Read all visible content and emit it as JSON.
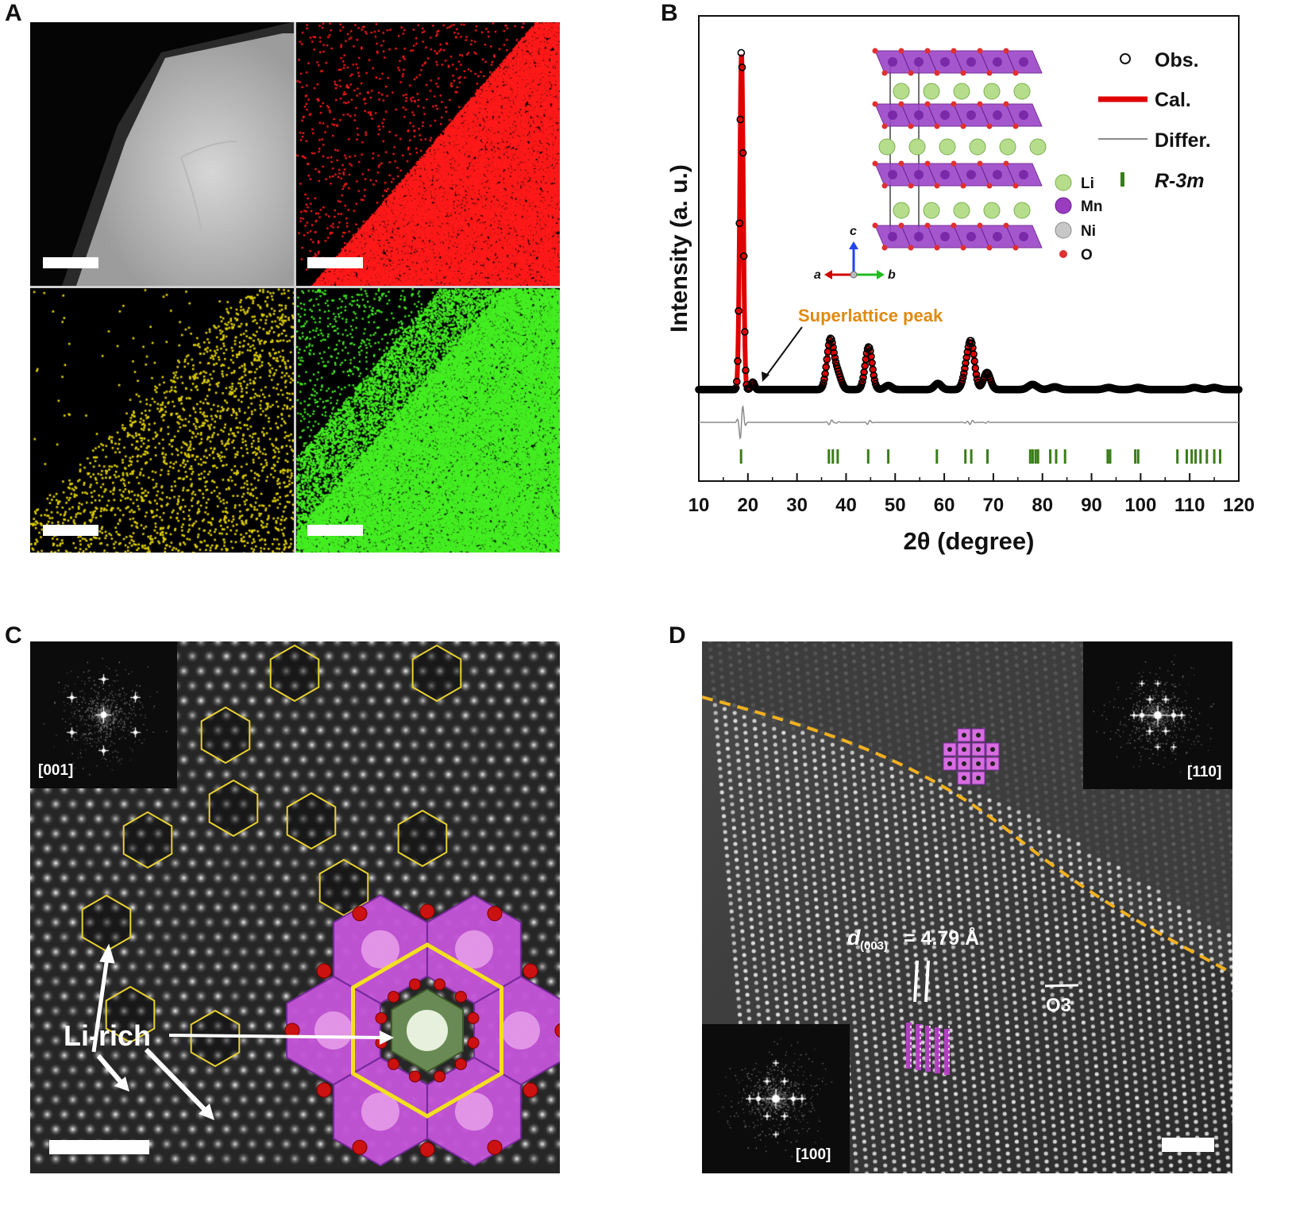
{
  "panel_labels": {
    "a": "A",
    "b": "B",
    "c": "C",
    "d": "D"
  },
  "panel_a": {
    "tiles": [
      {
        "name": "haadf",
        "color": "#d9d9d9"
      },
      {
        "name": "map-1",
        "color": "#ff1a1a"
      },
      {
        "name": "map-2",
        "color": "#e0d000"
      },
      {
        "name": "map-3",
        "color": "#44ee22"
      }
    ]
  },
  "chart_data": {
    "type": "line",
    "title": "",
    "xlabel": "2θ (degree)",
    "ylabel": "Intensity (a. u.)",
    "xlim": [
      10,
      120
    ],
    "xticks": [
      10,
      20,
      30,
      40,
      50,
      60,
      70,
      80,
      90,
      100,
      110,
      120
    ],
    "xtick_labels": [
      "10",
      "20",
      "30",
      "40",
      "50",
      "60",
      "70",
      "80",
      "90",
      "100",
      "110",
      "120"
    ],
    "yticks_shown": false,
    "series": [
      {
        "name": "Obs.",
        "style": "open-circles",
        "color": "#000000",
        "peaks": [
          [
            18.7,
            100
          ],
          [
            21.0,
            2.2
          ],
          [
            36.8,
            14.5
          ],
          [
            38.3,
            4.5
          ],
          [
            44.6,
            12.5
          ],
          [
            48.6,
            1.2
          ],
          [
            58.7,
            1.8
          ],
          [
            64.5,
            4.5
          ],
          [
            65.5,
            12.5
          ],
          [
            68.7,
            5.0
          ],
          [
            78.0,
            1.5
          ],
          [
            82.5,
            0.8
          ],
          [
            93.5,
            0.6
          ],
          [
            99.5,
            0.6
          ],
          [
            111.0,
            0.6
          ],
          [
            115.0,
            0.6
          ]
        ],
        "baseline": 1.5
      },
      {
        "name": "Cal.",
        "style": "line",
        "color": "#e00000"
      },
      {
        "name": "Differ.",
        "style": "line",
        "color": "#8a8a8a"
      }
    ],
    "reflections": {
      "name": "R-3m",
      "color": "#3a7d1a",
      "positions": [
        18.6,
        36.5,
        37.3,
        38.3,
        44.5,
        48.6,
        58.5,
        64.3,
        65.5,
        68.8,
        77.5,
        78.0,
        78.6,
        79.1,
        81.6,
        82.8,
        84.6,
        93.3,
        93.8,
        98.9,
        99.5,
        107.5,
        109.4,
        110.4,
        111.2,
        112.2,
        113.5,
        115.0,
        116.2
      ]
    },
    "legend": [
      "Obs.",
      "Cal.",
      "Differ.",
      "R-3m"
    ],
    "legend_position": "top-right",
    "annotation": {
      "text": "Superlattice peak",
      "x": 21.0,
      "color": "#e08a10"
    },
    "inset_legend": [
      "Li",
      "Mn",
      "Ni",
      "O"
    ],
    "axes_labels": {
      "a": "a",
      "b": "b",
      "c": "c"
    }
  },
  "panel_c": {
    "fft_label": "[001]",
    "annotation": "Li-rich"
  },
  "panel_d": {
    "fft_top_label": "[110]",
    "fft_bottom_label": "[100]",
    "d_spacing": {
      "symbol": "d",
      "subscript": "(003)",
      "value": "= 4.79 Å"
    },
    "phase_label": "O3"
  }
}
